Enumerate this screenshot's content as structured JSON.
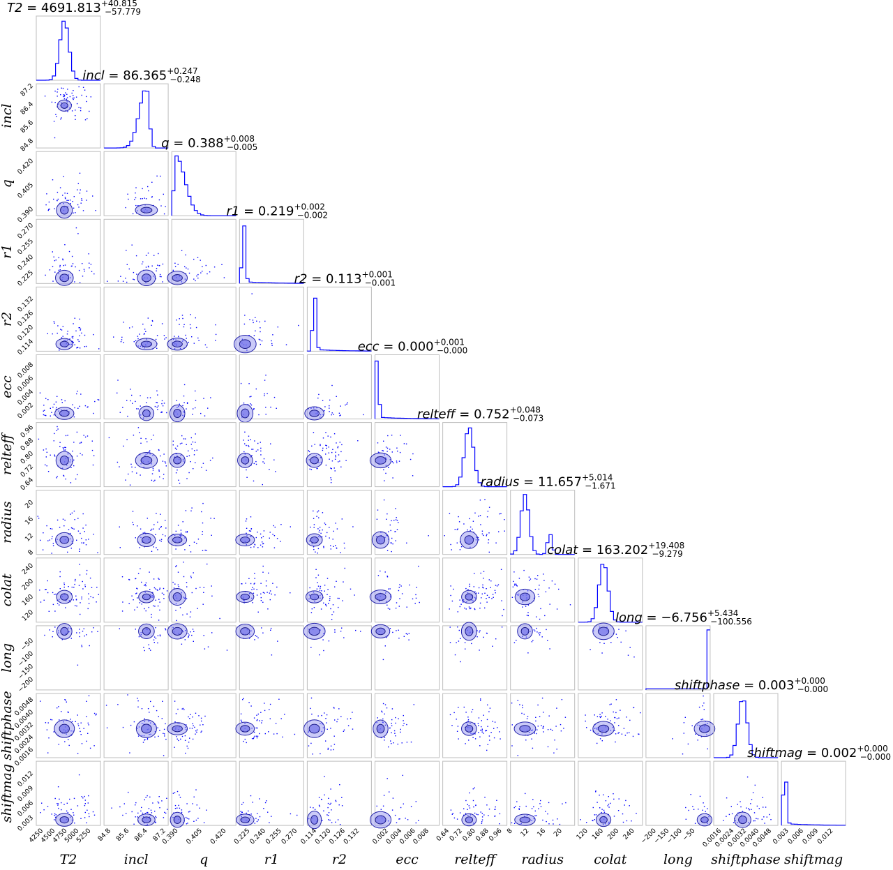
{
  "chart_data": {
    "type": "scatter",
    "subtype": "corner-plot",
    "colors": {
      "line": "#0000ff",
      "contour": "#8c8cf0"
    },
    "grid": false,
    "parameters": [
      {
        "name": "T_2",
        "label": "T2",
        "title": {
          "name": "T2",
          "value": "4691.813",
          "plus": "+40.815",
          "minus": "−57.779"
        },
        "range": [
          4100,
          5450
        ],
        "ticks": [
          "4250",
          "4500",
          "4750",
          "5000",
          "5250"
        ],
        "tick_values": [
          4250,
          4500,
          4750,
          5000,
          5250
        ],
        "median": 4691.813,
        "sigma_plus": 40.815,
        "sigma_minus": 57.779,
        "mode": "peak",
        "peak": 4691
      },
      {
        "name": "incl",
        "label": "incl",
        "title": {
          "name": "incl",
          "value": "86.365",
          "plus": "+0.247",
          "minus": "−0.248"
        },
        "range": [
          84.5,
          87.3
        ],
        "ticks": [
          "84.8",
          "85.6",
          "86.4",
          "87.2"
        ],
        "tick_values": [
          84.8,
          85.6,
          86.4,
          87.2
        ],
        "median": 86.365,
        "sigma_plus": 0.247,
        "sigma_minus": 0.248,
        "mode": "skew-left",
        "peak": 86.35
      },
      {
        "name": "q",
        "label": "q",
        "title": {
          "name": "q",
          "value": "0.388",
          "plus": "+0.008",
          "minus": "−0.005"
        },
        "range": [
          0.386,
          0.426
        ],
        "ticks": [
          "0.390",
          "0.405",
          "0.420"
        ],
        "tick_values": [
          0.39,
          0.405,
          0.42
        ],
        "median": 0.388,
        "sigma_plus": 0.008,
        "sigma_minus": 0.005,
        "mode": "skew-right",
        "peak": 0.3885
      },
      {
        "name": "r_1",
        "label": "r1",
        "title": {
          "name": "r1",
          "value": "0.219",
          "plus": "+0.002",
          "minus": "−0.002"
        },
        "range": [
          0.215,
          0.276
        ],
        "ticks": [
          "0.225",
          "0.240",
          "0.255",
          "0.270"
        ],
        "tick_values": [
          0.225,
          0.24,
          0.255,
          0.27
        ],
        "median": 0.219,
        "sigma_plus": 0.002,
        "sigma_minus": 0.002,
        "mode": "spike",
        "peak": 0.219
      },
      {
        "name": "r_2",
        "label": "r2",
        "title": {
          "name": "r2",
          "value": "0.113",
          "plus": "+0.001",
          "minus": "−0.001"
        },
        "range": [
          0.11,
          0.137
        ],
        "ticks": [
          "0.114",
          "0.120",
          "0.126",
          "0.132"
        ],
        "tick_values": [
          0.114,
          0.12,
          0.126,
          0.132
        ],
        "median": 0.113,
        "sigma_plus": 0.001,
        "sigma_minus": 0.001,
        "mode": "spike",
        "peak": 0.113
      },
      {
        "name": "ecc",
        "label": "ecc",
        "title": {
          "name": "ecc",
          "value": "0.000",
          "plus": "+0.001",
          "minus": "−0.000"
        },
        "range": [
          0.0,
          0.0095
        ],
        "ticks": [
          "0.002",
          "0.004",
          "0.006",
          "0.008"
        ],
        "tick_values": [
          0.002,
          0.004,
          0.006,
          0.008
        ],
        "median": 0.0,
        "sigma_plus": 0.001,
        "sigma_minus": 0.0,
        "mode": "spike",
        "peak": 0.0003
      },
      {
        "name": "relteff",
        "label": "relteff",
        "title": {
          "name": "relteff",
          "value": "0.752",
          "plus": "+0.048",
          "minus": "−0.073"
        },
        "range": [
          0.6,
          0.99
        ],
        "ticks": [
          "0.64",
          "0.72",
          "0.80",
          "0.88",
          "0.96"
        ],
        "tick_values": [
          0.64,
          0.72,
          0.8,
          0.88,
          0.96
        ],
        "median": 0.752,
        "sigma_plus": 0.048,
        "sigma_minus": 0.073,
        "mode": "peak",
        "peak": 0.76
      },
      {
        "name": "radius",
        "label": "radius",
        "title": {
          "name": "radius",
          "value": "11.657",
          "plus": "+5.014",
          "minus": "−1.671"
        },
        "range": [
          7.5,
          23
        ],
        "ticks": [
          "8",
          "12",
          "16",
          "20"
        ],
        "tick_values": [
          8,
          12,
          16,
          20
        ],
        "median": 11.657,
        "sigma_plus": 5.014,
        "sigma_minus": 1.671,
        "mode": "bimodal",
        "peak": 11.0
      },
      {
        "name": "colat",
        "label": "colat",
        "title": {
          "name": "colat",
          "value": "163.202",
          "plus": "+19.408",
          "minus": "−9.279"
        },
        "range": [
          95,
          260
        ],
        "ticks": [
          "120",
          "160",
          "200",
          "240"
        ],
        "tick_values": [
          120,
          160,
          200,
          240
        ],
        "median": 163.202,
        "sigma_plus": 19.408,
        "sigma_minus": 9.279,
        "mode": "peak",
        "peak": 160
      },
      {
        "name": "long",
        "label": "long",
        "title": {
          "name": "long",
          "value": "−6.756",
          "plus": "+5.434",
          "minus": "−100.556"
        },
        "range": [
          -240,
          8
        ],
        "ticks": [
          "−200",
          "−150",
          "−100",
          "−50"
        ],
        "tick_values": [
          -200,
          -150,
          -100,
          -50
        ],
        "median": -6.756,
        "sigma_plus": 5.434,
        "sigma_minus": 100.556,
        "mode": "edge-spike",
        "peak": 0
      },
      {
        "name": "shiftphase",
        "label": "shiftphase",
        "title": {
          "name": "shiftphase",
          "value": "0.003",
          "plus": "+0.000",
          "minus": "−0.000"
        },
        "range": [
          0.0011,
          0.0052
        ],
        "ticks": [
          "0.0016",
          "0.0024",
          "0.0032",
          "0.0040",
          "0.0048"
        ],
        "tick_values": [
          0.0016,
          0.0024,
          0.0032,
          0.004,
          0.0048
        ],
        "median": 0.003,
        "sigma_plus": 0.0002,
        "sigma_minus": 0.0002,
        "mode": "peak",
        "peak": 0.00295
      },
      {
        "name": "shiftmag",
        "label": "shiftmag",
        "title": {
          "name": "shiftmag",
          "value": "0.002",
          "plus": "+0.000",
          "minus": "−0.000"
        },
        "range": [
          0.0015,
          0.0145
        ],
        "ticks": [
          "0.003",
          "0.006",
          "0.009",
          "0.012"
        ],
        "tick_values": [
          0.003,
          0.006,
          0.009,
          0.012
        ],
        "median": 0.002,
        "sigma_plus": 0.0005,
        "sigma_minus": 0.0003,
        "mode": "spike",
        "peak": 0.0022
      }
    ]
  }
}
